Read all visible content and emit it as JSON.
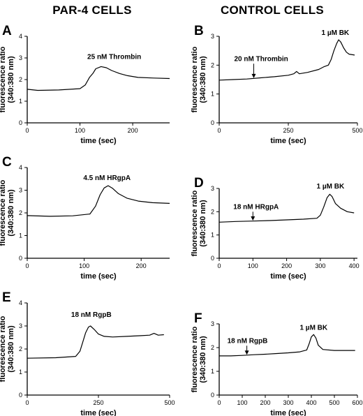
{
  "figure": {
    "headers": [
      "PAR-4 CELLS",
      "CONTROL CELLS"
    ]
  },
  "chart_data": [
    {
      "type": "line",
      "panel": "A",
      "xlabel": "time (sec)",
      "ylabel": [
        "fluorescence ratio",
        "(340:380 nm)"
      ],
      "xlim": [
        0,
        270
      ],
      "ylim": [
        0,
        4
      ],
      "xticks": [
        0,
        100,
        200
      ],
      "yticks": [
        0,
        1,
        2,
        3,
        4
      ],
      "annotations": [
        {
          "text": "25 nM Thrombin",
          "x": 165,
          "y": 2.95,
          "arrow": false
        }
      ],
      "series": [
        {
          "x": [
            0,
            20,
            60,
            100,
            110,
            118,
            125,
            130,
            140,
            150,
            160,
            175,
            190,
            210,
            240,
            270
          ],
          "y": [
            1.55,
            1.5,
            1.52,
            1.58,
            1.75,
            2.1,
            2.3,
            2.5,
            2.6,
            2.55,
            2.42,
            2.28,
            2.18,
            2.1,
            2.07,
            2.05
          ]
        }
      ]
    },
    {
      "type": "line",
      "panel": "B",
      "xlabel": "time (sec)",
      "ylabel": [
        "fluorescence ratio",
        "(340:380 nm)"
      ],
      "xlim": [
        0,
        500
      ],
      "ylim": [
        0,
        3
      ],
      "xticks": [
        0,
        250,
        500
      ],
      "yticks": [
        0,
        1,
        2,
        3
      ],
      "annotations": [
        {
          "text": "20 nM Thrombin",
          "x": 125,
          "y": 1.55,
          "arrow": true,
          "arrow_from": 2.05
        },
        {
          "text": "1 µM BK",
          "x": 420,
          "y": 3.05,
          "arrow": false
        }
      ],
      "series": [
        {
          "x": [
            0,
            50,
            100,
            150,
            200,
            250,
            270,
            280,
            290,
            320,
            360,
            380,
            395,
            405,
            415,
            425,
            432,
            440,
            450,
            460,
            470,
            490
          ],
          "y": [
            1.48,
            1.5,
            1.52,
            1.56,
            1.6,
            1.65,
            1.7,
            1.78,
            1.7,
            1.75,
            1.85,
            1.95,
            2.0,
            2.2,
            2.5,
            2.75,
            2.88,
            2.8,
            2.6,
            2.45,
            2.38,
            2.35
          ]
        }
      ]
    },
    {
      "type": "line",
      "panel": "C",
      "xlabel": "time (sec)",
      "ylabel": [
        "fluorescence ratio",
        "(340:380 nm)"
      ],
      "xlim": [
        0,
        250
      ],
      "ylim": [
        0,
        4
      ],
      "xticks": [
        0,
        100,
        200
      ],
      "yticks": [
        0,
        1,
        2,
        3,
        4
      ],
      "annotations": [
        {
          "text": "4.5 nM HRgpA",
          "x": 140,
          "y": 3.45,
          "arrow": false
        }
      ],
      "series": [
        {
          "x": [
            0,
            40,
            80,
            110,
            120,
            128,
            135,
            142,
            150,
            160,
            175,
            195,
            220,
            250
          ],
          "y": [
            1.88,
            1.85,
            1.87,
            1.95,
            2.3,
            2.8,
            3.1,
            3.2,
            3.08,
            2.85,
            2.65,
            2.52,
            2.45,
            2.42
          ]
        }
      ]
    },
    {
      "type": "line",
      "panel": "D",
      "xlabel": "time (sec)",
      "ylabel": [
        "fluorescence ratio",
        "(340:380 nm)"
      ],
      "xlim": [
        0,
        410
      ],
      "ylim": [
        0,
        3
      ],
      "xticks": [
        0,
        100,
        200,
        300,
        400
      ],
      "yticks": [
        0,
        1,
        2,
        3
      ],
      "annotations": [
        {
          "text": "18 nM HRgpA",
          "x": 100,
          "y": 1.62,
          "arrow": true,
          "arrow_from": 2.0
        },
        {
          "text": "1 µM BK",
          "x": 330,
          "y": 3.0,
          "arrow": false
        }
      ],
      "series": [
        {
          "x": [
            0,
            50,
            100,
            150,
            200,
            250,
            290,
            300,
            310,
            320,
            328,
            335,
            345,
            360,
            380,
            400
          ],
          "y": [
            1.55,
            1.58,
            1.6,
            1.62,
            1.65,
            1.68,
            1.72,
            1.85,
            2.2,
            2.6,
            2.75,
            2.65,
            2.35,
            2.15,
            2.0,
            1.95
          ]
        }
      ]
    },
    {
      "type": "line",
      "panel": "E",
      "xlabel": "time (sec)",
      "ylabel": [
        "fluorescence ratio",
        "(340:380 nm)"
      ],
      "xlim": [
        0,
        500
      ],
      "ylim": [
        0,
        4
      ],
      "xticks": [
        0,
        250,
        500
      ],
      "yticks": [
        0,
        1,
        2,
        3,
        4
      ],
      "annotations": [
        {
          "text": "18 nM RgpB",
          "x": 225,
          "y": 3.4,
          "arrow": false
        }
      ],
      "series": [
        {
          "x": [
            0,
            100,
            170,
            185,
            195,
            205,
            215,
            222,
            235,
            250,
            270,
            300,
            350,
            400,
            430,
            445,
            460,
            480
          ],
          "y": [
            1.6,
            1.62,
            1.68,
            1.9,
            2.3,
            2.7,
            2.95,
            3.0,
            2.85,
            2.65,
            2.55,
            2.52,
            2.55,
            2.58,
            2.6,
            2.68,
            2.6,
            2.62
          ]
        }
      ]
    },
    {
      "type": "line",
      "panel": "F",
      "xlabel": "time (sec)",
      "ylabel": [
        "fluorescence ratio",
        "(340:380 nm)"
      ],
      "xlim": [
        0,
        600
      ],
      "ylim": [
        0,
        3
      ],
      "xticks": [
        0,
        100,
        200,
        300,
        400,
        500,
        600
      ],
      "yticks": [
        0,
        1,
        2,
        3
      ],
      "annotations": [
        {
          "text": "18 nM RgpB",
          "x": 120,
          "y": 1.7,
          "arrow": true,
          "arrow_from": 2.08
        },
        {
          "text": "1 µM BK",
          "x": 410,
          "y": 2.75,
          "arrow": false
        }
      ],
      "series": [
        {
          "x": [
            0,
            50,
            100,
            150,
            200,
            250,
            300,
            350,
            380,
            390,
            400,
            410,
            420,
            430,
            450,
            500,
            550,
            590
          ],
          "y": [
            1.65,
            1.65,
            1.67,
            1.7,
            1.72,
            1.75,
            1.78,
            1.82,
            1.9,
            2.15,
            2.45,
            2.55,
            2.4,
            2.1,
            1.92,
            1.88,
            1.88,
            1.88
          ]
        }
      ]
    }
  ]
}
